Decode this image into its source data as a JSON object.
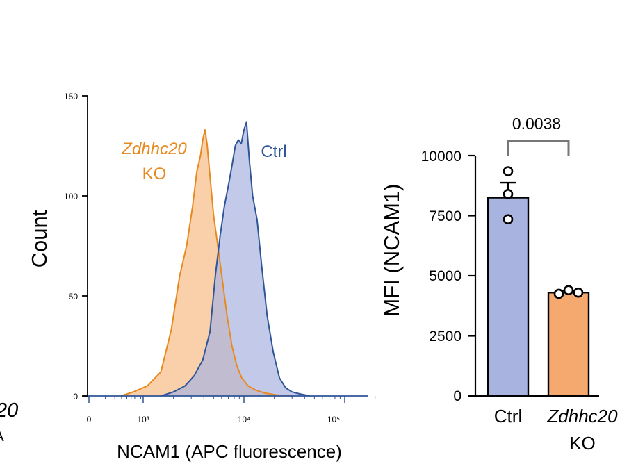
{
  "chart_data": [
    {
      "type": "area",
      "title": "",
      "xlabel": "NCAM1 (APC fluorescence)",
      "ylabel": "Count",
      "xscale": "log",
      "xlim": [
        0,
        250000
      ],
      "ylim": [
        0,
        150
      ],
      "x_tick_labels": [
        "0",
        "10³",
        "10⁴",
        "10⁵"
      ],
      "y_tick_labels": [
        "0",
        "50",
        "100",
        "150"
      ],
      "y_ticks": [
        0,
        50,
        100,
        150
      ],
      "series": [
        {
          "name": "Zdhhc20 KO",
          "label_line1": "Zdhhc20",
          "label_line2": "KO",
          "edge_color": "#E8891E",
          "fill_color": "#F9C89B",
          "x": [
            600,
            800,
            1100,
            1500,
            1900,
            2300,
            2700,
            3100,
            3400,
            3700,
            3900,
            4100,
            4300,
            4600,
            5000,
            5500,
            6100,
            6800,
            7600,
            8500,
            9500,
            11000,
            13000,
            16000,
            21000,
            30000
          ],
          "y": [
            0,
            2,
            5,
            12,
            33,
            60,
            75,
            95,
            112,
            120,
            128,
            133,
            126,
            110,
            90,
            75,
            58,
            40,
            25,
            15,
            9,
            5,
            3,
            1.5,
            0.5,
            0
          ]
        },
        {
          "name": "Ctrl",
          "label_line1": "Ctrl",
          "edge_color": "#2F5597",
          "fill_color": "#A9B3E0",
          "x": [
            1500,
            2000,
            2600,
            3200,
            3900,
            4600,
            5200,
            5800,
            6400,
            7000,
            7600,
            8200,
            8800,
            9400,
            10000,
            10600,
            11300,
            12200,
            13500,
            15000,
            17000,
            19500,
            22500,
            26000,
            30000,
            36000,
            45000
          ],
          "y": [
            0,
            2,
            5,
            10,
            18,
            32,
            60,
            80,
            95,
            105,
            115,
            125,
            128,
            126,
            133,
            137,
            118,
            100,
            88,
            65,
            40,
            22,
            9,
            4,
            2,
            1,
            0
          ]
        }
      ]
    },
    {
      "type": "bar",
      "title": "",
      "xlabel": "",
      "ylabel": "MFI (NCAM1)",
      "ylim": [
        0,
        10000
      ],
      "y_ticks": [
        0,
        2500,
        5000,
        7500,
        10000
      ],
      "y_tick_labels": [
        "0",
        "2500",
        "5000",
        "7500",
        "10000"
      ],
      "categories": [
        {
          "line1": "Ctrl",
          "line2": "",
          "italic": false
        },
        {
          "line1": "Zdhhc20",
          "line2": "KO",
          "italic": true
        }
      ],
      "values": [
        8250,
        4300
      ],
      "errors": [
        620,
        80
      ],
      "points": [
        [
          9350,
          8400,
          7350
        ],
        [
          4250,
          4400,
          4300
        ]
      ],
      "bar_colors": [
        "#A9B3E0",
        "#F5A96E"
      ],
      "bar_edge": "#000000",
      "bracket_color": "#777777",
      "p_value": "0.0038"
    }
  ],
  "cropped_left_text": [
    "20",
    "A"
  ]
}
